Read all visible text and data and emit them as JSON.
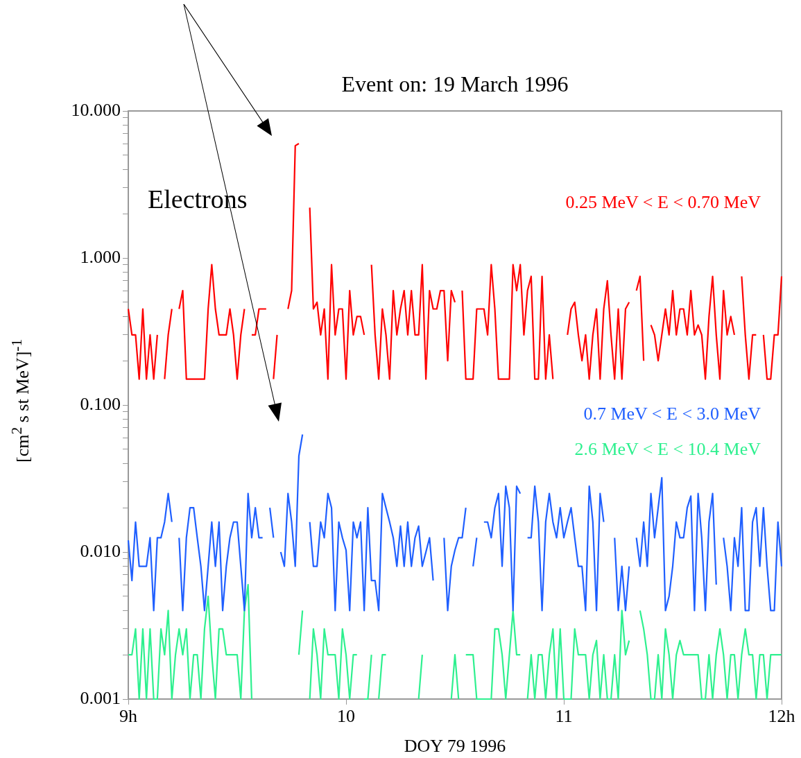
{
  "chart_data": {
    "type": "line",
    "title": "Event on: 19 March 1996",
    "xlabel": "DOY 79 1996",
    "ylabel": "[cm$^{2}$ s st MeV]$^{-1}$",
    "annotations": [
      "Electrons"
    ],
    "log": "y",
    "xlim": [
      9,
      12
    ],
    "xticks": [
      {
        "value": 9,
        "label": "9h"
      },
      10,
      11,
      {
        "value": 12,
        "label": "12h"
      }
    ],
    "ylim": [
      0.001,
      10
    ],
    "yticks": [
      {
        "value": 0.001,
        "label": "0.001"
      },
      {
        "value": 0.002,
        "label": null
      },
      {
        "value": 0.003,
        "label": null
      },
      {
        "value": 0.004,
        "label": null
      },
      {
        "value": 0.005,
        "label": null
      },
      {
        "value": 0.006,
        "label": null
      },
      {
        "value": 0.007,
        "label": null
      },
      {
        "value": 0.008,
        "label": null
      },
      {
        "value": 0.009,
        "label": null
      },
      {
        "value": 0.01,
        "label": "0.010"
      },
      {
        "value": 0.02,
        "label": null
      },
      {
        "value": 0.03,
        "label": null
      },
      {
        "value": 0.04,
        "label": null
      },
      {
        "value": 0.05,
        "label": null
      },
      {
        "value": 0.06,
        "label": null
      },
      {
        "value": 0.07,
        "label": null
      },
      {
        "value": 0.08,
        "label": null
      },
      {
        "value": 0.09,
        "label": null
      },
      {
        "value": 0.1,
        "label": "0.100"
      },
      {
        "value": 0.2,
        "label": null
      },
      {
        "value": 0.3,
        "label": null
      },
      {
        "value": 0.4,
        "label": null
      },
      {
        "value": 0.5,
        "label": null
      },
      {
        "value": 0.6,
        "label": null
      },
      {
        "value": 0.7,
        "label": null
      },
      {
        "value": 0.8,
        "label": null
      },
      {
        "value": 0.9,
        "label": null
      },
      {
        "value": 1,
        "label": "1.000"
      },
      {
        "value": 2,
        "label": null
      },
      {
        "value": 3,
        "label": null
      },
      {
        "value": 4,
        "label": null
      },
      {
        "value": 5,
        "label": null
      },
      {
        "value": 6,
        "label": null
      },
      {
        "value": 7,
        "label": null
      },
      {
        "value": 8,
        "label": null
      },
      {
        "value": 9,
        "label": null
      },
      {
        "value": 10,
        "label": "10.000"
      }
    ],
    "x": [
      9,
      9.0167,
      9.0333,
      9.05,
      9.0667,
      9.0833,
      9.1,
      9.1167,
      9.1333,
      9.15,
      9.1667,
      9.1833,
      9.2,
      9.2167,
      9.2333,
      9.25,
      9.2667,
      9.2833,
      9.3,
      9.3167,
      9.3333,
      9.35,
      9.3667,
      9.3833,
      9.4,
      9.4167,
      9.4333,
      9.45,
      9.4667,
      9.4833,
      9.5,
      9.5167,
      9.5333,
      9.55,
      9.5667,
      9.5833,
      9.6,
      9.6167,
      9.6333,
      9.65,
      9.6667,
      9.6833,
      9.7,
      9.7167,
      9.7333,
      9.75,
      9.7667,
      9.7833,
      9.8,
      9.8167,
      9.8333,
      9.85,
      9.8667,
      9.8833,
      9.9,
      9.9167,
      9.9333,
      9.95,
      9.9667,
      9.9833,
      10,
      10.0167,
      10.0333,
      10.05,
      10.0667,
      10.0833,
      10.1,
      10.1167,
      10.1333,
      10.15,
      10.1667,
      10.1833,
      10.2,
      10.2167,
      10.2333,
      10.25,
      10.2667,
      10.2833,
      10.3,
      10.3167,
      10.3333,
      10.35,
      10.3667,
      10.3833,
      10.4,
      10.4167,
      10.4333,
      10.45,
      10.4667,
      10.4833,
      10.5,
      10.5167,
      10.5333,
      10.55,
      10.5667,
      10.5833,
      10.6,
      10.6167,
      10.6333,
      10.65,
      10.6667,
      10.6833,
      10.7,
      10.7167,
      10.7333,
      10.75,
      10.7667,
      10.7833,
      10.8,
      10.8167,
      10.8333,
      10.85,
      10.8667,
      10.8833,
      10.9,
      10.9167,
      10.9333,
      10.95,
      10.9667,
      10.9833,
      11,
      11.0167,
      11.0333,
      11.05,
      11.0667,
      11.0833,
      11.1,
      11.1167,
      11.1333,
      11.15,
      11.1667,
      11.1833,
      11.2,
      11.2167,
      11.2333,
      11.25,
      11.2667,
      11.2833,
      11.3,
      11.3167,
      11.3333,
      11.35,
      11.3667,
      11.3833,
      11.4,
      11.4167,
      11.4333,
      11.45,
      11.4667,
      11.4833,
      11.5,
      11.5167,
      11.5333,
      11.55,
      11.5667,
      11.5833,
      11.6,
      11.6167,
      11.6333,
      11.65,
      11.6667,
      11.6833,
      11.7,
      11.7167,
      11.7333,
      11.75,
      11.7667,
      11.7833,
      11.8,
      11.8167,
      11.8333,
      11.85,
      11.8667,
      11.8833,
      11.9,
      11.9167,
      11.9333,
      11.95,
      11.9667,
      11.9833,
      12
    ],
    "series": [
      {
        "name": "0.25 MeV < E < 0.70 MeV",
        "color": "#ff0000",
        "values": [
          0.45,
          0.3,
          0.3,
          0.15,
          0.45,
          0.15,
          0.3,
          0.15,
          0.3,
          null,
          0.15,
          0.3,
          0.45,
          null,
          0.45,
          0.6,
          0.15,
          0.15,
          0.15,
          0.15,
          0.15,
          0.15,
          0.45,
          0.9,
          0.45,
          0.3,
          0.3,
          0.3,
          0.45,
          0.3,
          0.15,
          0.3,
          0.45,
          null,
          0.3,
          0.3,
          0.45,
          0.45,
          0.45,
          null,
          0.15,
          0.3,
          null,
          null,
          0.45,
          0.6,
          5.8,
          6,
          null,
          null,
          2.2,
          0.45,
          0.5,
          0.3,
          0.45,
          0.15,
          0.9,
          0.3,
          0.45,
          0.45,
          0.15,
          0.6,
          0.3,
          0.4,
          0.4,
          0.3,
          null,
          0.9,
          0.3,
          0.15,
          0.45,
          0.3,
          0.15,
          0.6,
          0.3,
          0.45,
          0.6,
          0.3,
          0.6,
          0.3,
          0.3,
          0.9,
          0.15,
          0.6,
          0.45,
          0.45,
          0.6,
          0.6,
          0.2,
          0.6,
          0.5,
          null,
          0.6,
          0.15,
          0.15,
          0.15,
          0.45,
          0.45,
          0.45,
          0.3,
          0.9,
          0.45,
          0.15,
          0.15,
          0.15,
          0.15,
          0.9,
          0.6,
          0.9,
          0.3,
          0.6,
          0.75,
          0.15,
          0.15,
          0.75,
          0.15,
          0.3,
          0.15,
          null,
          null,
          null,
          0.3,
          0.45,
          0.5,
          0.3,
          0.2,
          0.3,
          0.15,
          0.3,
          0.45,
          0.15,
          0.45,
          0.7,
          0.3,
          0.15,
          0.45,
          0.15,
          0.45,
          0.5,
          null,
          0.6,
          0.75,
          0.2,
          null,
          0.35,
          0.3,
          0.2,
          0.3,
          0.45,
          0.3,
          0.6,
          0.3,
          0.45,
          0.45,
          0.3,
          0.6,
          0.3,
          0.35,
          0.3,
          0.15,
          0.4,
          0.75,
          0.3,
          0.15,
          0.6,
          0.3,
          0.4,
          0.3,
          null,
          0.75,
          0.3,
          0.15,
          0.3,
          0.3,
          null,
          0.3,
          0.15,
          0.15,
          0.3,
          0.3,
          0.75
        ]
      },
      {
        "name": "0.7 MeV < E < 3.0 MeV",
        "color": "#1f5fff",
        "values": [
          0.012,
          0.0064,
          0.016,
          0.008,
          0.008,
          0.008,
          0.0125,
          0.004,
          0.0125,
          0.0125,
          0.016,
          0.025,
          0.016,
          null,
          0.0125,
          0.004,
          0.0125,
          0.02,
          0.02,
          0.0125,
          0.008,
          0.004,
          0.008,
          0.016,
          0.008,
          0.016,
          0.004,
          0.008,
          0.0125,
          0.016,
          0.016,
          0.008,
          0.004,
          0.025,
          0.0125,
          0.02,
          0.0125,
          0.0125,
          null,
          0.02,
          0.0125,
          null,
          0.01,
          0.008,
          0.025,
          0.016,
          0.008,
          0.045,
          0.063,
          null,
          0.016,
          0.008,
          0.008,
          0.016,
          0.0125,
          0.025,
          0.02,
          0.004,
          0.016,
          0.0125,
          0.0103,
          0.004,
          0.016,
          0.0125,
          0.016,
          0.004,
          0.02,
          0.0064,
          0.0064,
          0.004,
          0.025,
          0.02,
          0.016,
          0.0125,
          0.008,
          0.015,
          0.008,
          0.016,
          0.008,
          0.0125,
          0.015,
          0.008,
          0.01,
          0.0125,
          0.0064,
          null,
          null,
          0.0125,
          0.004,
          0.008,
          0.0103,
          0.0125,
          0.0125,
          0.02,
          null,
          0.008,
          0.0125,
          null,
          0.016,
          0.016,
          0.0125,
          0.02,
          0.025,
          0.008,
          0.028,
          0.02,
          0.004,
          0.028,
          0.025,
          null,
          0.0125,
          0.0125,
          0.028,
          0.016,
          0.004,
          0.016,
          0.025,
          0.016,
          0.0125,
          0.02,
          0.0125,
          0.016,
          0.02,
          0.0125,
          0.008,
          0.008,
          0.004,
          0.028,
          0.016,
          0.004,
          0.025,
          0.016,
          null,
          null,
          0.0125,
          0.004,
          0.008,
          0.004,
          0.008,
          null,
          0.0125,
          0.008,
          0.016,
          0.008,
          0.025,
          0.0125,
          0.02,
          0.032,
          0.004,
          0.005,
          0.008,
          0.016,
          0.0125,
          0.0125,
          0.02,
          0.024,
          0.004,
          0.025,
          0.0125,
          0.004,
          0.016,
          0.025,
          0.006,
          null,
          0.0125,
          0.008,
          0.004,
          0.0125,
          0.008,
          0.02,
          0.004,
          0.004,
          0.016,
          0.02,
          0.008,
          0.02,
          0.008,
          0.004,
          0.004,
          0.016,
          0.008
        ]
      },
      {
        "name": "2.6 MeV < E < 10.4 MeV",
        "color": "#2ef08f",
        "values": [
          0.002,
          0.002,
          0.003,
          0.001,
          0.003,
          0.001,
          0.003,
          0.001,
          0.001,
          0.003,
          0.002,
          0.004,
          0.001,
          0.002,
          0.003,
          0.002,
          0.003,
          0.001,
          0.002,
          0.002,
          0.001,
          0.003,
          0.005,
          0.002,
          0.001,
          0.003,
          0.003,
          0.002,
          0.002,
          0.002,
          0.002,
          0.001,
          0.004,
          0.006,
          0.001,
          null,
          null,
          null,
          null,
          null,
          null,
          null,
          null,
          null,
          null,
          null,
          null,
          0.002,
          0.004,
          null,
          0.001,
          0.003,
          0.002,
          0.001,
          0.003,
          0.002,
          0.002,
          0.002,
          0.001,
          0.003,
          0.002,
          0.001,
          0.002,
          0.002,
          null,
          0.001,
          0.001,
          0.002,
          null,
          0.001,
          0.002,
          0.002,
          null,
          null,
          null,
          null,
          null,
          null,
          null,
          null,
          0.001,
          0.002,
          null,
          null,
          null,
          null,
          null,
          null,
          null,
          0.001,
          0.002,
          0.001,
          null,
          0.002,
          0.002,
          0.002,
          0.001,
          0.001,
          0.001,
          0.001,
          0.001,
          0.003,
          0.003,
          0.002,
          0.001,
          0.002,
          0.004,
          0.002,
          0.002,
          null,
          0.001,
          0.002,
          0.001,
          0.002,
          0.002,
          0.001,
          0.002,
          0.003,
          0.001,
          0.003,
          0.001,
          0.001,
          0.001,
          0.003,
          0.002,
          0.002,
          0.002,
          0.001,
          0.002,
          0.0025,
          0.001,
          0.002,
          0.001,
          0.001,
          0.002,
          0.001,
          0.004,
          0.002,
          0.0025,
          null,
          null,
          0.004,
          0.003,
          0.002,
          0.001,
          0.001,
          0.002,
          0.001,
          0.003,
          0.002,
          0.001,
          0.002,
          0.0025,
          0.002,
          0.002,
          0.002,
          0.002,
          0.002,
          0.001,
          0.001,
          0.002,
          0.001,
          0.002,
          0.003,
          0.002,
          0.001,
          0.002,
          0.002,
          0.001,
          0.002,
          0.003,
          0.002,
          0.002,
          0.001,
          0.002,
          0.002,
          0.001,
          0.002,
          0.002,
          0.002,
          0.002
        ]
      }
    ]
  }
}
